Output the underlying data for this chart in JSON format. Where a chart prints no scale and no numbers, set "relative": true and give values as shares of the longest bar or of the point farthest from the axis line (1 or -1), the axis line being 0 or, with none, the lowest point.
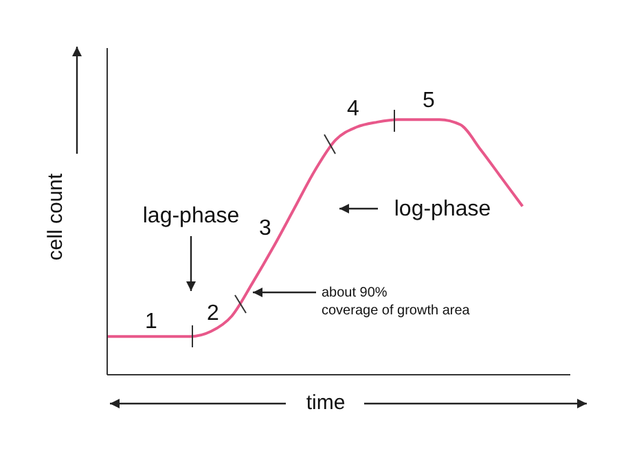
{
  "chart_data": {
    "type": "line",
    "xlabel": "time",
    "ylabel": "cell count",
    "relative": true,
    "marker": "none",
    "categories": [
      null,
      null,
      null,
      null,
      null,
      null,
      null,
      null,
      null,
      null,
      null,
      null,
      null,
      null,
      null,
      null,
      null,
      null,
      null,
      null,
      null
    ],
    "series": [
      {
        "color": "#e8588a",
        "values": [
          0.15,
          0.15,
          0.15,
          0.15,
          0.15,
          0.17,
          0.23,
          0.36,
          0.5,
          0.65,
          0.8,
          0.92,
          0.97,
          0.99,
          1,
          1,
          1,
          0.98,
          0.88,
          0.77,
          0.66
        ]
      }
    ],
    "annotations": [
      "lag-phase",
      "log-phase",
      "about 90% coverage of growth area",
      "1",
      "2",
      "3",
      "4",
      "5"
    ]
  }
}
